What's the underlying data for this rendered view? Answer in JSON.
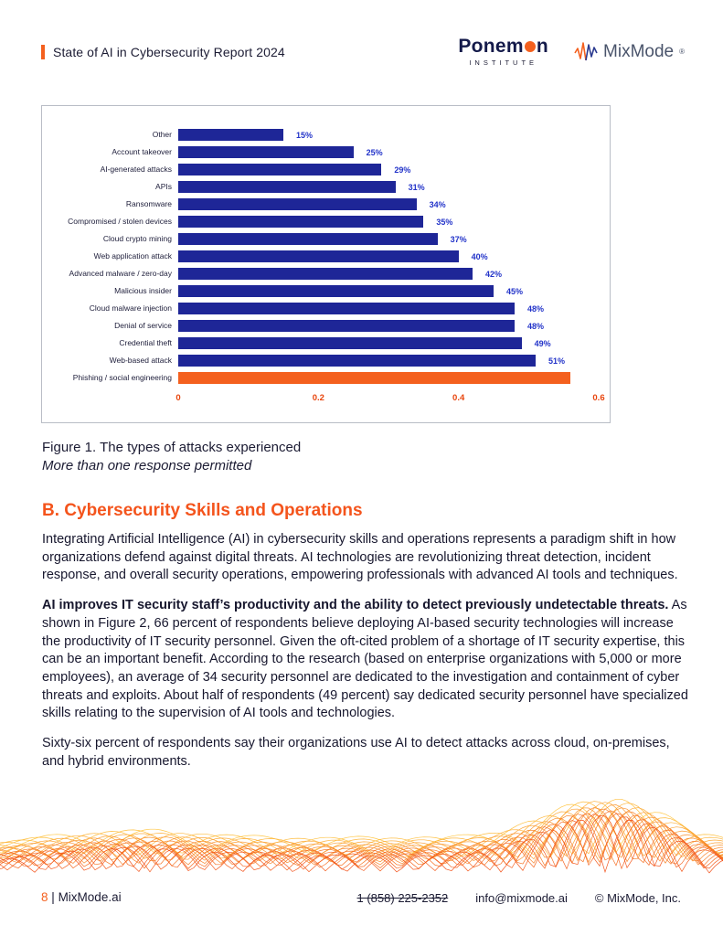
{
  "header": {
    "report_title": "State of AI in Cybersecurity Report 2024",
    "ponemon": {
      "part1": "Ponem",
      "part2": "n",
      "subtitle": "INSTITUTE"
    },
    "mixmode": {
      "text": "MixMode",
      "reg": "®"
    }
  },
  "chart_data": {
    "type": "bar",
    "orientation": "horizontal",
    "title": "Figure 1. The types of attacks experienced",
    "categories": [
      "Other",
      "Account takeover",
      "AI-generated attacks",
      "APIs",
      "Ransomware",
      "Compromised / stolen devices",
      "Cloud crypto mining",
      "Web application attack",
      "Advanced malware / zero-day",
      "Malicious insider",
      "Cloud malware injection",
      "Denial of service",
      "Credential theft",
      "Web-based attack",
      "Phishing / social engineering"
    ],
    "values": [
      15,
      25,
      29,
      31,
      34,
      35,
      37,
      40,
      42,
      45,
      48,
      48,
      49,
      51,
      56
    ],
    "value_labels": [
      "15%",
      "25%",
      "29%",
      "31%",
      "34%",
      "35%",
      "37%",
      "40%",
      "42%",
      "45%",
      "48%",
      "48%",
      "49%",
      "51%",
      ""
    ],
    "x_ticks": [
      "0",
      "0.2",
      "0.4",
      "0.6"
    ],
    "xlim": [
      0,
      60
    ],
    "grid": false,
    "legend": "none",
    "bar_color": "#1E2697",
    "highlight_index": 14,
    "highlight_color": "#F4601E",
    "value_label_color": "#2233C9",
    "tick_color": "#E8440C"
  },
  "figure": {
    "caption": "Figure 1. The types of attacks experienced",
    "note": "More than one response permitted"
  },
  "section": {
    "heading": "B. Cybersecurity Skills and Operations",
    "para1": "Integrating Artificial Intelligence (AI) in cybersecurity skills and operations represents a paradigm shift in how organizations defend against digital threats. AI technologies are revolutionizing threat detection, incident response, and overall security operations, empowering professionals with advanced AI tools and techniques.",
    "para2_bold": "AI improves IT security staff’s productivity and the ability to detect previously undetectable threats.",
    "para2_rest": " As shown in Figure 2, 66 percent of respondents believe deploying AI-based security technologies will increase the productivity of IT security personnel. Given the oft-cited problem of a shortage of IT security expertise, this can be an important benefit. According to the research (based on enterprise organizations with 5,000 or more employees), an average of 34 security personnel are dedicated to the investigation and containment of cyber threats and exploits. About half of respondents (49 percent) say dedicated security personnel have specialized skills relating to the supervision of AI tools and technologies.",
    "para3": "Sixty-six percent of respondents say their organizations use AI to detect attacks across cloud, on-premises, and hybrid environments."
  },
  "footer": {
    "page_number": "8",
    "separator": "|",
    "site": "MixMode.ai",
    "phone": "1 (858) 225-2352",
    "email": "info@mixmode.ai",
    "copyright": "© MixMode, Inc."
  },
  "colors": {
    "accent_orange": "#F4601E",
    "navy_text": "#1B1B33",
    "wave_start": "#FFC43C",
    "wave_end": "#F24E15"
  }
}
